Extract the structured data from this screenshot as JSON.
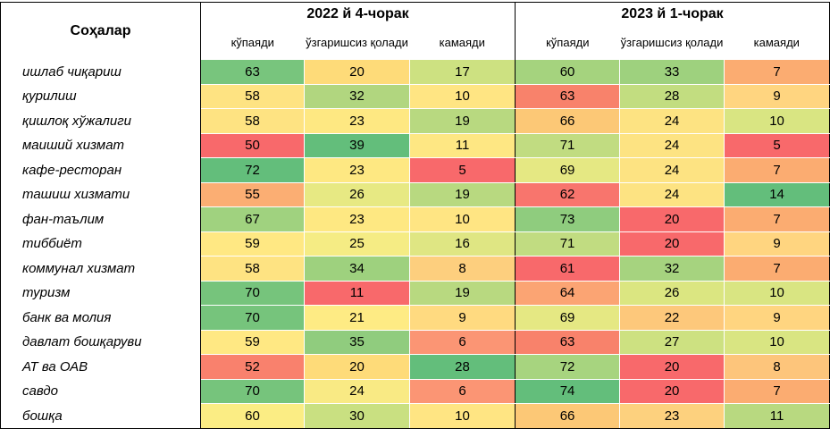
{
  "header": {
    "sector_label": "Соҳалар",
    "groups": [
      {
        "title": "2022 й 4-чорак",
        "subs": [
          "кўпаяди",
          "ўзгаришсиз қолади",
          "камаяди"
        ]
      },
      {
        "title": "2023 й 1-чорак",
        "subs": [
          "кўпаяди",
          "ўзгаришсиз қолади",
          "камаяди"
        ]
      }
    ]
  },
  "rows": [
    {
      "sector": "ишлаб чиқариш",
      "values": [
        63,
        20,
        17,
        60,
        33,
        7
      ],
      "colors": [
        "#78c57d",
        "#fedb79",
        "#cde181",
        "#a5d37e",
        "#9ed17e",
        "#fbac71"
      ]
    },
    {
      "sector": "қурилиш",
      "values": [
        58,
        32,
        10,
        63,
        28,
        9
      ],
      "colors": [
        "#fee382",
        "#b1d67f",
        "#ffe583",
        "#f8826b",
        "#c2dd80",
        "#ffd580"
      ]
    },
    {
      "sector": "қишлоқ хўжалиги",
      "values": [
        58,
        23,
        19,
        66,
        24,
        10
      ],
      "colors": [
        "#fee382",
        "#fee882",
        "#b8d980",
        "#fcc876",
        "#fde382",
        "#d9e582"
      ]
    },
    {
      "sector": "маиший хизмат",
      "values": [
        50,
        39,
        11,
        71,
        24,
        5
      ],
      "colors": [
        "#f8696b",
        "#63be7b",
        "#fee783",
        "#c1dc81",
        "#fde382",
        "#f8696b"
      ]
    },
    {
      "sector": "кафе-ресторан",
      "values": [
        72,
        23,
        5,
        69,
        24,
        7
      ],
      "colors": [
        "#63be7b",
        "#fee882",
        "#f8696b",
        "#e5e883",
        "#fde382",
        "#fbac71"
      ]
    },
    {
      "sector": "ташиш хизмати",
      "values": [
        55,
        26,
        19,
        62,
        24,
        14
      ],
      "colors": [
        "#fbae73",
        "#e7e983",
        "#b8d980",
        "#f8756d",
        "#fde382",
        "#63be7b"
      ]
    },
    {
      "sector": "фан-таълим",
      "values": [
        67,
        23,
        10,
        73,
        20,
        7
      ],
      "colors": [
        "#a0d27f",
        "#fee882",
        "#ffe583",
        "#8fcc7e",
        "#f8696b",
        "#fbac71"
      ]
    },
    {
      "sector": "тиббиёт",
      "values": [
        59,
        25,
        16,
        71,
        20,
        9
      ],
      "colors": [
        "#ffe883",
        "#f5ec84",
        "#dfe683",
        "#c1dc81",
        "#f8696b",
        "#ffd580"
      ]
    },
    {
      "sector": "коммунал хизмат",
      "values": [
        58,
        34,
        8,
        61,
        32,
        7
      ],
      "colors": [
        "#fee382",
        "#9ed17e",
        "#fdcf7e",
        "#f8696b",
        "#a6d37f",
        "#fbac71"
      ]
    },
    {
      "sector": "туризм",
      "values": [
        70,
        11,
        19,
        64,
        26,
        10
      ],
      "colors": [
        "#76c47c",
        "#f8696b",
        "#b8d980",
        "#fba473",
        "#dbe681",
        "#d9e582"
      ]
    },
    {
      "sector": "банк ва молия",
      "values": [
        70,
        21,
        9,
        69,
        22,
        9
      ],
      "colors": [
        "#76c47c",
        "#feeb84",
        "#ffda80",
        "#e5e883",
        "#fdc87b",
        "#ffd580"
      ]
    },
    {
      "sector": "давлат бошқаруви",
      "values": [
        59,
        35,
        6,
        63,
        27,
        10
      ],
      "colors": [
        "#ffe883",
        "#90cc7e",
        "#fb9574",
        "#f8826b",
        "#cde181",
        "#d9e582"
      ]
    },
    {
      "sector": "АТ ва ОАВ",
      "values": [
        52,
        20,
        28,
        72,
        20,
        8
      ],
      "colors": [
        "#f9816d",
        "#fedb79",
        "#63be7b",
        "#a7d47f",
        "#f8696b",
        "#fdc57b"
      ]
    },
    {
      "sector": "савдо",
      "values": [
        70,
        24,
        6,
        74,
        20,
        7
      ],
      "colors": [
        "#76c47c",
        "#f9ea84",
        "#fb9574",
        "#63be7b",
        "#f8696b",
        "#fbac71"
      ]
    },
    {
      "sector": "бошқа",
      "values": [
        60,
        30,
        10,
        66,
        23,
        11
      ],
      "colors": [
        "#fbed84",
        "#c9e081",
        "#ffe583",
        "#fcc876",
        "#fdd17e",
        "#b8d980"
      ]
    }
  ]
}
